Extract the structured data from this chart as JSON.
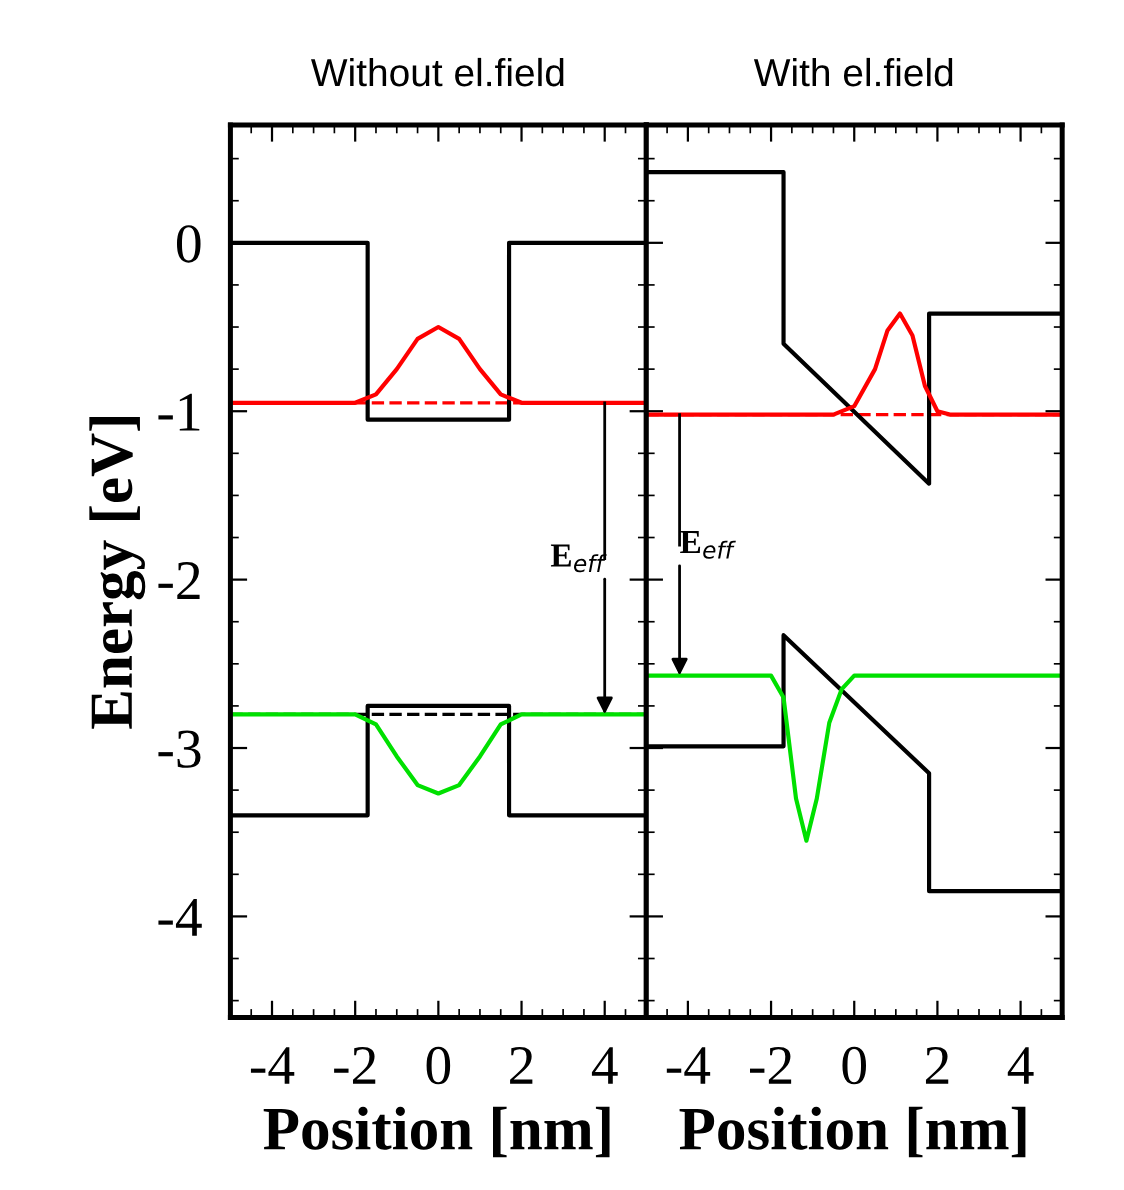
{
  "chart_data": [
    {
      "type": "line",
      "title": "Without el.field",
      "xlabel": "Position [nm]",
      "ylabel": "Energy [eV]",
      "xlim": [
        -5,
        5
      ],
      "ylim": [
        -4.6,
        0.7
      ],
      "xticks": [
        -4,
        -2,
        0,
        2,
        4
      ],
      "yticks": [
        0,
        -1,
        -2,
        -3,
        -4
      ],
      "grid": false,
      "legend": false,
      "marker": "none",
      "series": [
        {
          "color": "#000000",
          "x": [
            -5,
            -1.7,
            -1.7,
            1.7,
            1.7,
            5
          ],
          "values": [
            0,
            0,
            -1.05,
            -1.05,
            0,
            0
          ]
        },
        {
          "color": "#000000",
          "x": [
            -5,
            -1.7,
            -1.7,
            1.7,
            1.7,
            5
          ],
          "values": [
            -3.4,
            -3.4,
            -2.75,
            -2.75,
            -3.4,
            -3.4
          ]
        },
        {
          "color": "#ff0000",
          "x": [
            -5,
            -2,
            -1.5,
            -1,
            -0.5,
            0,
            0.5,
            1,
            1.5,
            2,
            5
          ],
          "values": [
            -0.95,
            -0.95,
            -0.9,
            -0.75,
            -0.57,
            -0.5,
            -0.57,
            -0.75,
            -0.9,
            -0.95,
            -0.95
          ]
        },
        {
          "color": "#00e000",
          "x": [
            -5,
            -2,
            -1.5,
            -1,
            -0.5,
            0,
            0.5,
            1,
            1.5,
            2,
            5
          ],
          "values": [
            -2.8,
            -2.8,
            -2.86,
            -3.05,
            -3.22,
            -3.27,
            -3.22,
            -3.05,
            -2.86,
            -2.8,
            -2.8
          ]
        }
      ],
      "ref_lines": [
        {
          "axis": "y",
          "value": -0.95,
          "color": "#ff0000",
          "line_style": "dashed"
        },
        {
          "axis": "y",
          "value": -2.8,
          "color": "#000000",
          "line_style": "dashed"
        }
      ],
      "annotations": [
        {
          "text": "E$_{eff}$",
          "x": 4.0,
          "y": -2.8
        }
      ]
    },
    {
      "type": "line",
      "title": "With el.field",
      "xlabel": "Position [nm]",
      "xlim": [
        -5,
        5
      ],
      "ylim": [
        -4.6,
        0.7
      ],
      "xticks": [
        -4,
        -2,
        0,
        2,
        4
      ],
      "yticks": [
        0,
        -1,
        -2,
        -3,
        -4
      ],
      "tick_labels": "x",
      "grid": false,
      "legend": false,
      "marker": "none",
      "series": [
        {
          "color": "#000000",
          "x": [
            -5,
            -1.7,
            -1.7,
            1.8,
            1.8,
            5
          ],
          "values": [
            0.42,
            0.42,
            -0.6,
            -1.43,
            -0.42,
            -0.42
          ]
        },
        {
          "color": "#000000",
          "x": [
            -5,
            -1.7,
            -1.7,
            1.8,
            1.8,
            5
          ],
          "values": [
            -2.99,
            -2.99,
            -2.33,
            -3.15,
            -3.85,
            -3.85
          ]
        },
        {
          "color": "#ff0000",
          "x": [
            -5,
            -0.5,
            0,
            0.5,
            0.8,
            1.1,
            1.4,
            1.7,
            2.0,
            2.3,
            5
          ],
          "values": [
            -1.02,
            -1.02,
            -0.97,
            -0.75,
            -0.52,
            -0.42,
            -0.55,
            -0.85,
            -1.0,
            -1.02,
            -1.02
          ]
        },
        {
          "color": "#00e000",
          "x": [
            -5,
            -2.0,
            -1.7,
            -1.4,
            -1.15,
            -0.9,
            -0.6,
            -0.3,
            0,
            5
          ],
          "values": [
            -2.57,
            -2.57,
            -2.7,
            -3.3,
            -3.55,
            -3.3,
            -2.85,
            -2.65,
            -2.57,
            -2.57
          ]
        }
      ],
      "ref_lines": [
        {
          "axis": "y",
          "value": -1.02,
          "color": "#ff0000",
          "line_style": "dashed"
        }
      ],
      "annotations": [
        {
          "text": "E$_{eff}$",
          "x": -4.2,
          "y": -2.57
        }
      ]
    }
  ]
}
